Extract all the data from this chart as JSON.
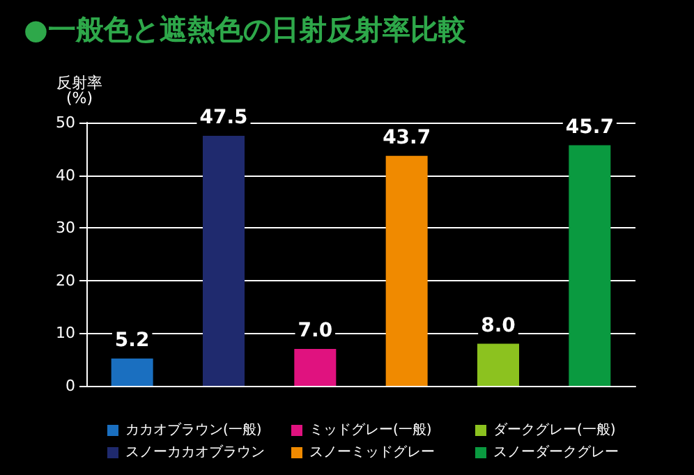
{
  "chart_data": {
    "type": "bar",
    "title": "●一般色と遮熱色の日射反射率比較",
    "ylabel": "反射率\n(%)",
    "categories": [
      null,
      null,
      null,
      null,
      null,
      null
    ],
    "series": [
      {
        "name": "カカオブラウン(一般)",
        "color": "#1a6fc0",
        "values": [
          5.2,
          null,
          null,
          null,
          null,
          null
        ]
      },
      {
        "name": "スノーカカオブラウン",
        "color": "#1f2a6e",
        "values": [
          null,
          47.5,
          null,
          null,
          null,
          null
        ]
      },
      {
        "name": "ミッドグレー(一般)",
        "color": "#e0127f",
        "values": [
          null,
          null,
          7.0,
          null,
          null,
          null
        ]
      },
      {
        "name": "スノーミッドグレー",
        "color": "#f08a00",
        "values": [
          null,
          null,
          null,
          43.7,
          null,
          null
        ]
      },
      {
        "name": "ダークグレー(一般)",
        "color": "#8cc21f",
        "values": [
          null,
          null,
          null,
          null,
          8.0,
          null
        ]
      },
      {
        "name": "スノーダークグレー",
        "color": "#0a9a40",
        "values": [
          null,
          null,
          null,
          null,
          null,
          45.7
        ]
      }
    ],
    "value_labels": [
      "5.2",
      "47.5",
      "7.0",
      "43.7",
      "8.0",
      "45.7"
    ],
    "ylim": [
      0,
      50
    ],
    "yticks": [
      0,
      10,
      20,
      30,
      40,
      50
    ],
    "grid": "y",
    "legend": "bottom"
  }
}
